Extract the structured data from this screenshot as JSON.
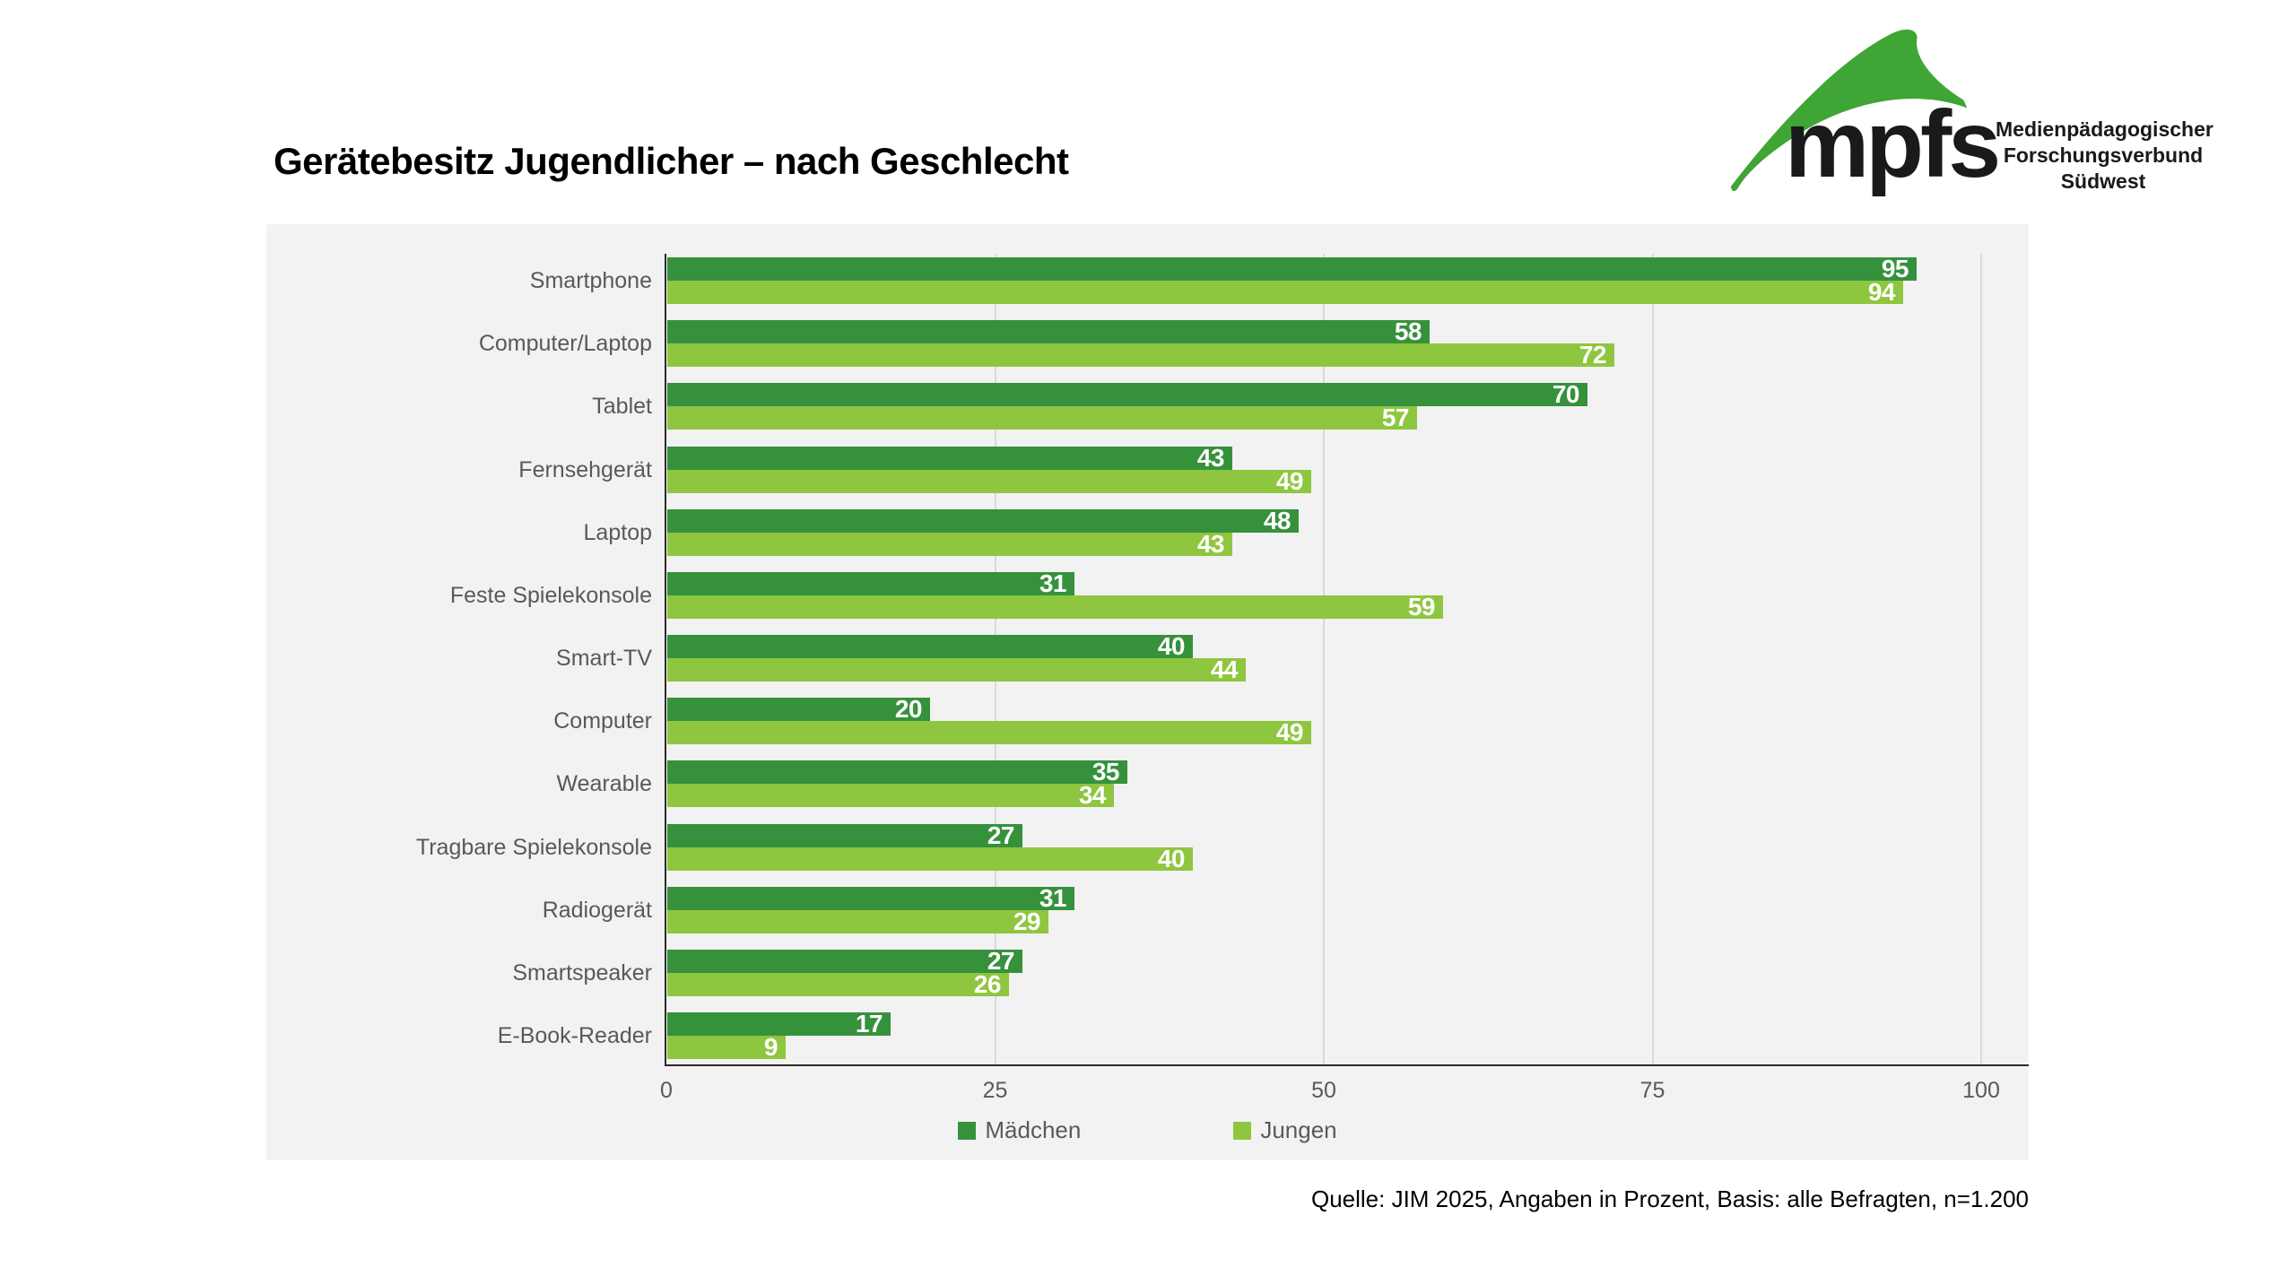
{
  "title": "Gerätebesitz Jugendlicher – nach Geschlecht",
  "logo": {
    "wordmark": "mpfs",
    "org_lines": [
      "Medienpädagogischer",
      "Forschungsverbund",
      "Südwest"
    ],
    "green": "#3fa535"
  },
  "source": "Quelle: JIM 2025, Angaben in Prozent, Basis: alle Befragten, n=1.200",
  "colors": {
    "maedchen": "#36913c",
    "jungen": "#8fc63f",
    "panel_background": "#f2f2f2",
    "gridline": "#d9d9d9",
    "axis": "#2b2b2b",
    "label_gray": "#595959"
  },
  "chart_data": {
    "type": "bar",
    "orientation": "horizontal",
    "title": "Gerätebesitz Jugendlicher – nach Geschlecht",
    "xlabel": "",
    "ylabel": "",
    "xlim": [
      0,
      100
    ],
    "xticks": [
      0,
      25,
      50,
      75,
      100
    ],
    "grid": "vertical",
    "legend_position": "bottom",
    "value_labels": "inside-end, white, percent",
    "categories": [
      "Smartphone",
      "Computer/Laptop",
      "Tablet",
      "Fernsehgerät",
      "Laptop",
      "Feste Spielekonsole",
      "Smart-TV",
      "Computer",
      "Wearable",
      "Tragbare Spielekonsole",
      "Radiogerät",
      "Smartspeaker",
      "E-Book-Reader"
    ],
    "series": [
      {
        "name": "Mädchen",
        "color": "#36913c",
        "values": [
          95,
          58,
          70,
          43,
          48,
          31,
          40,
          20,
          35,
          27,
          31,
          27,
          17
        ]
      },
      {
        "name": "Jungen",
        "color": "#8fc63f",
        "values": [
          94,
          72,
          57,
          49,
          43,
          59,
          44,
          49,
          34,
          40,
          29,
          26,
          9
        ]
      }
    ]
  }
}
